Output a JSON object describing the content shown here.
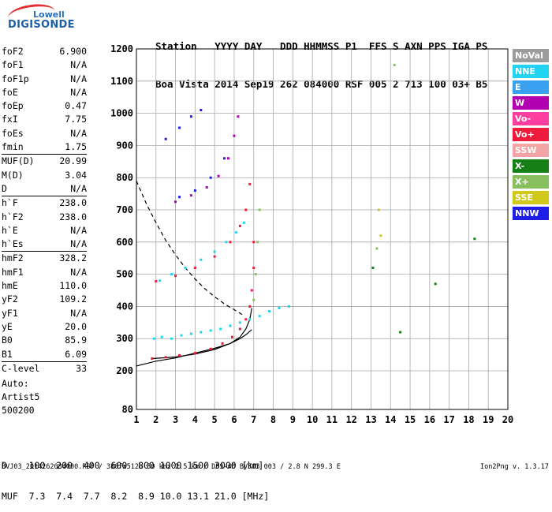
{
  "logo": {
    "line1": "Lowell",
    "line2": "DIGISONDE"
  },
  "header": {
    "row1": "Station   YYYY DAY   DDD HHMMSS P1  FFS S AXN PPS IGA PS",
    "row2": "Boa Vista 2014 Sep19 262 084000 RSF 005 2 713 100 03+ B5"
  },
  "params": [
    [
      {
        "label": "foF2",
        "value": "6.900"
      },
      {
        "label": "foF1",
        "value": "N/A"
      },
      {
        "label": "foF1p",
        "value": "N/A"
      },
      {
        "label": "foE",
        "value": "N/A"
      },
      {
        "label": "foEp",
        "value": "0.47"
      },
      {
        "label": "fxI",
        "value": "7.75"
      },
      {
        "label": "foEs",
        "value": "N/A"
      },
      {
        "label": "fmin",
        "value": "1.75"
      }
    ],
    [
      {
        "label": "MUF(D)",
        "value": "20.99"
      },
      {
        "label": "M(D)",
        "value": "3.04"
      },
      {
        "label": "D",
        "value": "N/A"
      }
    ],
    [
      {
        "label": "h`F",
        "value": "238.0"
      },
      {
        "label": "h`F2",
        "value": "238.0"
      },
      {
        "label": "h`E",
        "value": "N/A"
      },
      {
        "label": "h`Es",
        "value": "N/A"
      }
    ],
    [
      {
        "label": "hmF2",
        "value": "328.2"
      },
      {
        "label": "hmF1",
        "value": "N/A"
      },
      {
        "label": "hmE",
        "value": "110.0"
      },
      {
        "label": "yF2",
        "value": "109.2"
      },
      {
        "label": "yF1",
        "value": "N/A"
      },
      {
        "label": "yE",
        "value": "20.0"
      },
      {
        "label": "B0",
        "value": "85.9"
      },
      {
        "label": "B1",
        "value": "6.09"
      }
    ],
    [
      {
        "label": "C-level",
        "value": "33"
      }
    ]
  ],
  "auto": {
    "line1": "Auto:",
    "line2": "Artist5",
    "line3": "500200"
  },
  "distance_table": {
    "row1": "D    100  200  400  600  800 1000 1500 3000 [km]",
    "row2": "MUF  7.3  7.4  7.7  8.2  8.9 10.0 13.1 21.0 [MHz]"
  },
  "footer": {
    "left": "BVJ03_2014262084000.RSF / 380fx512h 50 kHz 2.5 km / DPS-4D BVJ03 003 / 2.8 N 299.3 E",
    "right": "Ion2Png v. 1.3.17"
  },
  "legend": [
    {
      "label": "NoVal",
      "color": "#9c9c9c"
    },
    {
      "label": "NNE",
      "color": "#22d4f2"
    },
    {
      "label": "E",
      "color": "#3aa0f0"
    },
    {
      "label": "W",
      "color": "#b000b0"
    },
    {
      "label": "Vo-",
      "color": "#ff3f9f"
    },
    {
      "label": "Vo+",
      "color": "#ee1b3c"
    },
    {
      "label": "SSW",
      "color": "#f4a4a4"
    },
    {
      "label": "X-",
      "color": "#168016"
    },
    {
      "label": "X+",
      "color": "#88c060"
    },
    {
      "label": "SSE",
      "color": "#d0c81a"
    },
    {
      "label": "NNW",
      "color": "#1e1ee8"
    }
  ],
  "chart_data": {
    "type": "scatter",
    "title": "",
    "xlabel": "",
    "ylabel": "",
    "xlim": [
      1,
      20
    ],
    "ylim": [
      80,
      1200
    ],
    "xticks": [
      1,
      2,
      3,
      4,
      5,
      6,
      7,
      8,
      9,
      10,
      11,
      12,
      13,
      14,
      15,
      16,
      17,
      18,
      19,
      20
    ],
    "yticks": [
      80,
      200,
      300,
      400,
      500,
      600,
      700,
      800,
      900,
      1000,
      1100,
      1200
    ],
    "grid": true,
    "legend_position": "right",
    "series": [
      {
        "name": "NNE",
        "points": [
          [
            1.9,
            300
          ],
          [
            2.3,
            305
          ],
          [
            2.8,
            300
          ],
          [
            3.3,
            310
          ],
          [
            3.8,
            315
          ],
          [
            4.3,
            320
          ],
          [
            4.8,
            325
          ],
          [
            5.3,
            330
          ],
          [
            5.8,
            340
          ],
          [
            6.3,
            350
          ],
          [
            6.8,
            360
          ],
          [
            7.3,
            370
          ],
          [
            7.8,
            385
          ],
          [
            8.3,
            395
          ],
          [
            8.8,
            400
          ],
          [
            2.2,
            480
          ],
          [
            2.8,
            500
          ],
          [
            3.5,
            520
          ],
          [
            4.3,
            545
          ],
          [
            5.0,
            570
          ],
          [
            5.6,
            600
          ],
          [
            6.1,
            630
          ],
          [
            6.5,
            660
          ]
        ]
      },
      {
        "name": "Vo+",
        "points": [
          [
            1.8,
            238
          ],
          [
            2.5,
            242
          ],
          [
            3.2,
            248
          ],
          [
            4.0,
            255
          ],
          [
            4.8,
            268
          ],
          [
            5.4,
            285
          ],
          [
            5.9,
            305
          ],
          [
            6.3,
            330
          ],
          [
            6.6,
            360
          ],
          [
            6.8,
            400
          ],
          [
            6.9,
            450
          ],
          [
            7.0,
            520
          ],
          [
            7.0,
            600
          ],
          [
            2.0,
            478
          ],
          [
            3.0,
            495
          ],
          [
            4.0,
            520
          ],
          [
            5.0,
            555
          ],
          [
            5.8,
            600
          ],
          [
            6.3,
            650
          ],
          [
            6.6,
            700
          ],
          [
            6.8,
            780
          ]
        ]
      },
      {
        "name": "W",
        "points": [
          [
            3.0,
            725
          ],
          [
            3.8,
            745
          ],
          [
            4.6,
            770
          ],
          [
            5.2,
            805
          ],
          [
            5.7,
            860
          ],
          [
            6.0,
            930
          ],
          [
            6.2,
            990
          ]
        ]
      },
      {
        "name": "NNW",
        "points": [
          [
            3.2,
            740
          ],
          [
            4.0,
            760
          ],
          [
            4.8,
            800
          ],
          [
            5.5,
            860
          ],
          [
            2.5,
            920
          ],
          [
            3.2,
            955
          ],
          [
            3.8,
            990
          ],
          [
            4.3,
            1010
          ]
        ]
      },
      {
        "name": "X+",
        "points": [
          [
            7.0,
            420
          ],
          [
            7.1,
            500
          ],
          [
            7.2,
            600
          ],
          [
            7.3,
            700
          ],
          [
            13.3,
            580
          ],
          [
            14.2,
            1150
          ]
        ]
      },
      {
        "name": "X-",
        "points": [
          [
            13.1,
            520
          ],
          [
            14.5,
            320
          ],
          [
            16.3,
            470
          ],
          [
            18.3,
            610
          ]
        ]
      },
      {
        "name": "SSE",
        "points": [
          [
            13.4,
            700
          ],
          [
            13.5,
            620
          ]
        ]
      }
    ],
    "curves": [
      {
        "name": "profile",
        "points": [
          [
            1.0,
            215
          ],
          [
            2.0,
            230
          ],
          [
            3.0,
            240
          ],
          [
            4.0,
            255
          ],
          [
            5.0,
            270
          ],
          [
            5.8,
            285
          ],
          [
            6.3,
            300
          ],
          [
            6.6,
            312
          ],
          [
            6.9,
            328
          ]
        ]
      },
      {
        "name": "trace",
        "points": [
          [
            1.8,
            238
          ],
          [
            3.0,
            243
          ],
          [
            4.0,
            252
          ],
          [
            5.0,
            266
          ],
          [
            5.8,
            285
          ],
          [
            6.3,
            305
          ],
          [
            6.6,
            330
          ],
          [
            6.8,
            360
          ],
          [
            6.9,
            395
          ]
        ]
      },
      {
        "name": "dashed",
        "points": [
          [
            1.0,
            790
          ],
          [
            1.5,
            720
          ],
          [
            2.0,
            660
          ],
          [
            2.5,
            605
          ],
          [
            3.0,
            560
          ],
          [
            3.5,
            520
          ],
          [
            4.0,
            485
          ],
          [
            4.5,
            455
          ],
          [
            5.0,
            430
          ],
          [
            5.5,
            408
          ],
          [
            6.0,
            390
          ],
          [
            6.4,
            375
          ]
        ]
      }
    ]
  }
}
